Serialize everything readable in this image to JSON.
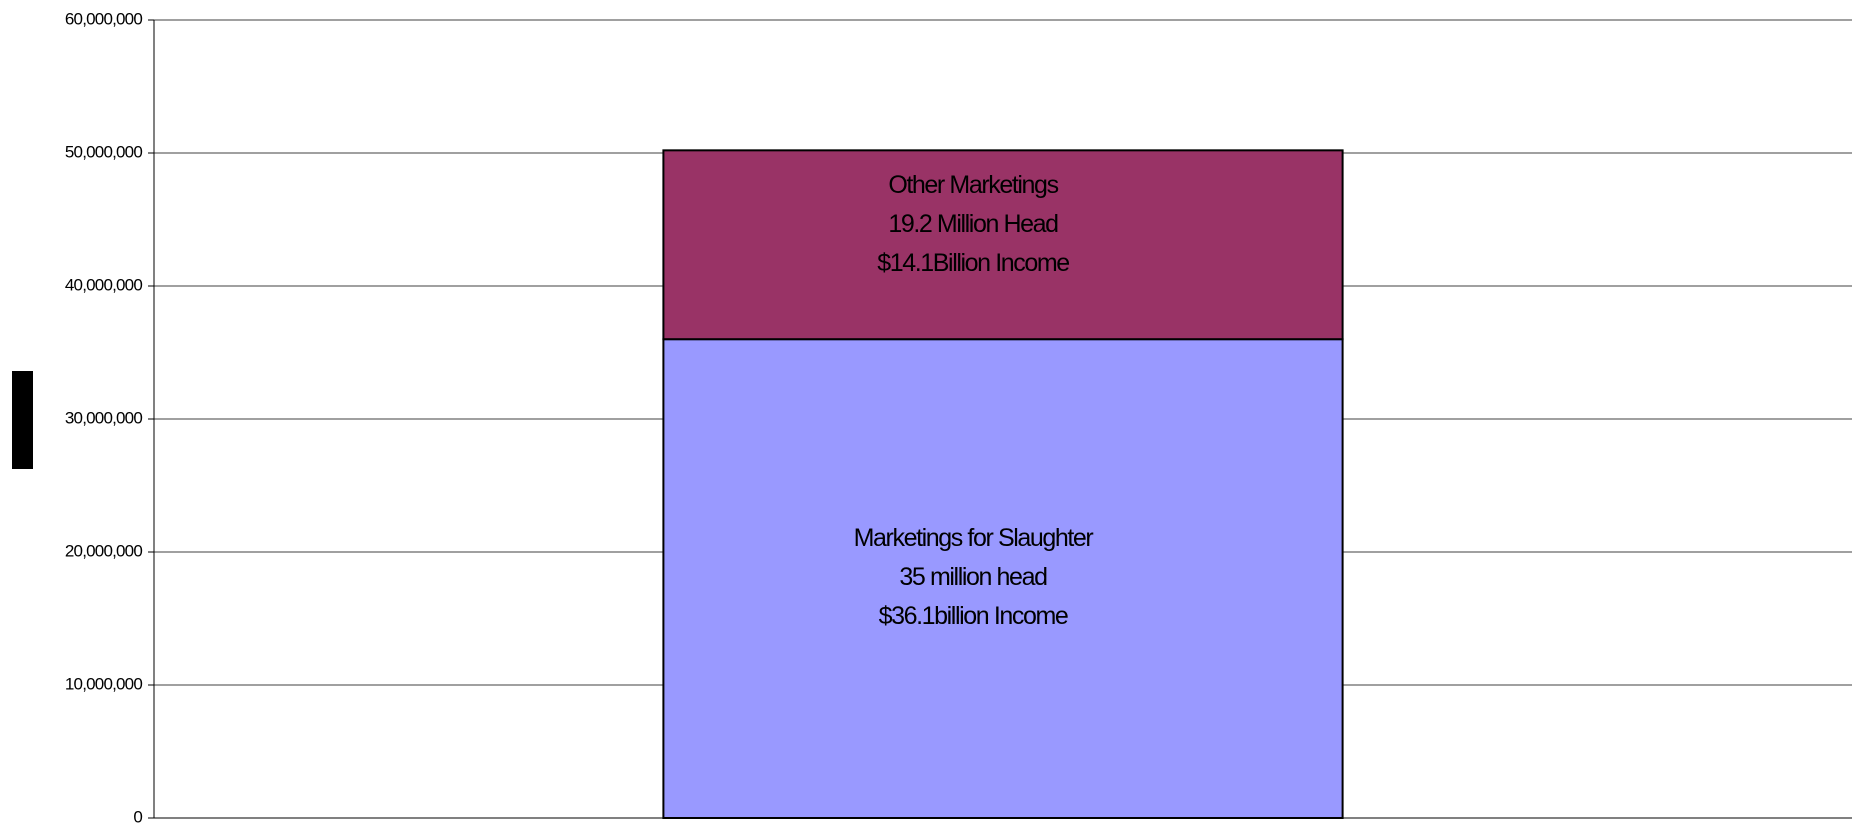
{
  "chart_data": {
    "type": "stacked-bar",
    "categories": [
      null
    ],
    "series": [
      {
        "color": "#9999ff",
        "values": [
          36000000
        ],
        "label": [
          "Marketings for Slaughter",
          "35 million head",
          "$36.1billion Income"
        ]
      },
      {
        "color": "#993366",
        "values": [
          14200000
        ],
        "label": [
          "Other Marketings",
          "19.2 Million Head",
          "$14.1Billion Income"
        ]
      }
    ],
    "ylim": [
      0,
      60000000
    ],
    "yticks": [
      0,
      {
        "value": 10000000,
        "label": "10,000,000"
      },
      {
        "value": 20000000,
        "label": "20,000,000"
      },
      {
        "value": 30000000,
        "label": "30,000,000"
      },
      {
        "value": 40000000,
        "label": "40,000,000"
      },
      {
        "value": 50000000,
        "label": "50,000,000"
      },
      {
        "value": 60000000,
        "label": "60,000,000"
      }
    ],
    "grid": true
  }
}
